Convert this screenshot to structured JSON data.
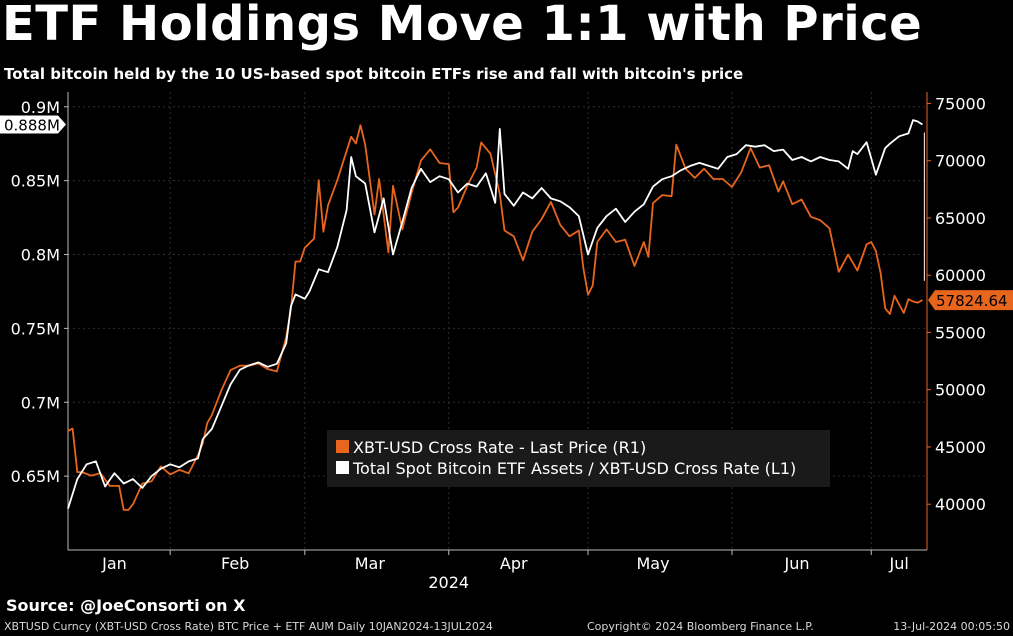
{
  "header": {
    "title": "ETF Holdings Move 1:1 with Price",
    "subtitle": "Total bitcoin held by the 10 US-based spot bitcoin ETFs rise and fall with bitcoin's price"
  },
  "footer": {
    "source": "Source: @JoeConsorti on X",
    "left_note": "XBTUSD Curncy (XBT-USD Cross Rate) BTC Price + ETF AUM  Daily 10JAN2024-13JUL2024",
    "copyright": "Copyright© 2024 Bloomberg Finance L.P.",
    "timestamp": "13-Jul-2024 00:05:50"
  },
  "colors": {
    "price_line": "#e8651d",
    "etf_line": "#ffffff",
    "grid": "#2e2e2e",
    "background": "#000000",
    "legend_bg": "#1a1a1a"
  },
  "chart_data": {
    "type": "line",
    "grid": true,
    "legend_placement": "bottom-center",
    "x_range": [
      "2024-01-10",
      "2024-07-13"
    ],
    "x_tick_labels": [
      "Jan",
      "Feb",
      "Mar",
      "Apr",
      "May",
      "Jun",
      "Jul"
    ],
    "x_year_label": "2024",
    "left_axis": {
      "ylim": [
        0.6,
        0.91
      ],
      "ticks": [
        0.65,
        0.7,
        0.75,
        0.8,
        0.85,
        0.9
      ],
      "tick_labels": [
        "0.65M",
        "0.7M",
        "0.75M",
        "0.8M",
        "0.85M",
        "0.9M"
      ],
      "last_value_label": "0.888M"
    },
    "right_axis": {
      "ylim": [
        36000,
        76000
      ],
      "ticks": [
        40000,
        45000,
        50000,
        55000,
        60000,
        65000,
        70000,
        75000
      ],
      "tick_labels": [
        "40000",
        "45000",
        "50000",
        "55000",
        "60000",
        "65000",
        "70000",
        "75000"
      ],
      "last_value_label": "57824.64"
    },
    "series": [
      {
        "name": "XBT-USD Cross Rate - Last Price (R1)",
        "axis": "right",
        "color": "#e8651d",
        "points": [
          [
            "2024-01-10",
            46400
          ],
          [
            "2024-01-11",
            46600
          ],
          [
            "2024-01-12",
            42800
          ],
          [
            "2024-01-13",
            42800
          ],
          [
            "2024-01-15",
            42500
          ],
          [
            "2024-01-17",
            42700
          ],
          [
            "2024-01-19",
            41600
          ],
          [
            "2024-01-21",
            41600
          ],
          [
            "2024-01-22",
            39500
          ],
          [
            "2024-01-23",
            39500
          ],
          [
            "2024-01-24",
            40000
          ],
          [
            "2024-01-26",
            41800
          ],
          [
            "2024-01-28",
            42000
          ],
          [
            "2024-01-30",
            43300
          ],
          [
            "2024-02-01",
            42600
          ],
          [
            "2024-02-03",
            43000
          ],
          [
            "2024-02-05",
            42700
          ],
          [
            "2024-02-07",
            44300
          ],
          [
            "2024-02-08",
            45300
          ],
          [
            "2024-02-09",
            47100
          ],
          [
            "2024-02-10",
            47800
          ],
          [
            "2024-02-12",
            49900
          ],
          [
            "2024-02-14",
            51700
          ],
          [
            "2024-02-16",
            52100
          ],
          [
            "2024-02-18",
            52100
          ],
          [
            "2024-02-20",
            52300
          ],
          [
            "2024-02-22",
            51800
          ],
          [
            "2024-02-24",
            51600
          ],
          [
            "2024-02-26",
            54600
          ],
          [
            "2024-02-27",
            57000
          ],
          [
            "2024-02-28",
            61200
          ],
          [
            "2024-02-29",
            61200
          ],
          [
            "2024-03-01",
            62400
          ],
          [
            "2024-03-03",
            63200
          ],
          [
            "2024-03-04",
            68300
          ],
          [
            "2024-03-05",
            63800
          ],
          [
            "2024-03-06",
            66100
          ],
          [
            "2024-03-08",
            68300
          ],
          [
            "2024-03-11",
            72100
          ],
          [
            "2024-03-12",
            71500
          ],
          [
            "2024-03-13",
            73100
          ],
          [
            "2024-03-14",
            71400
          ],
          [
            "2024-03-16",
            65300
          ],
          [
            "2024-03-17",
            68400
          ],
          [
            "2024-03-19",
            62000
          ],
          [
            "2024-03-20",
            67800
          ],
          [
            "2024-03-22",
            64000
          ],
          [
            "2024-03-24",
            67200
          ],
          [
            "2024-03-26",
            70000
          ],
          [
            "2024-03-28",
            71000
          ],
          [
            "2024-03-30",
            69800
          ],
          [
            "2024-04-01",
            69700
          ],
          [
            "2024-04-02",
            65500
          ],
          [
            "2024-04-03",
            65900
          ],
          [
            "2024-04-05",
            67800
          ],
          [
            "2024-04-07",
            69400
          ],
          [
            "2024-04-08",
            71600
          ],
          [
            "2024-04-10",
            70600
          ],
          [
            "2024-04-12",
            67100
          ],
          [
            "2024-04-13",
            63900
          ],
          [
            "2024-04-15",
            63400
          ],
          [
            "2024-04-17",
            61300
          ],
          [
            "2024-04-19",
            63800
          ],
          [
            "2024-04-21",
            64900
          ],
          [
            "2024-04-23",
            66400
          ],
          [
            "2024-04-25",
            64400
          ],
          [
            "2024-04-27",
            63400
          ],
          [
            "2024-04-29",
            63900
          ],
          [
            "2024-04-30",
            60600
          ],
          [
            "2024-05-01",
            58300
          ],
          [
            "2024-05-02",
            59100
          ],
          [
            "2024-05-03",
            62900
          ],
          [
            "2024-05-05",
            64000
          ],
          [
            "2024-05-07",
            62900
          ],
          [
            "2024-05-09",
            63100
          ],
          [
            "2024-05-11",
            60800
          ],
          [
            "2024-05-13",
            62900
          ],
          [
            "2024-05-14",
            61600
          ],
          [
            "2024-05-15",
            66300
          ],
          [
            "2024-05-17",
            67000
          ],
          [
            "2024-05-19",
            66900
          ],
          [
            "2024-05-20",
            71400
          ],
          [
            "2024-05-22",
            69300
          ],
          [
            "2024-05-24",
            68500
          ],
          [
            "2024-05-26",
            69300
          ],
          [
            "2024-05-28",
            68400
          ],
          [
            "2024-05-30",
            68400
          ],
          [
            "2024-06-01",
            67700
          ],
          [
            "2024-06-03",
            69000
          ],
          [
            "2024-06-05",
            71100
          ],
          [
            "2024-06-07",
            69400
          ],
          [
            "2024-06-09",
            69600
          ],
          [
            "2024-06-11",
            67300
          ],
          [
            "2024-06-12",
            68200
          ],
          [
            "2024-06-14",
            66200
          ],
          [
            "2024-06-16",
            66600
          ],
          [
            "2024-06-18",
            65100
          ],
          [
            "2024-06-20",
            64800
          ],
          [
            "2024-06-22",
            64100
          ],
          [
            "2024-06-24",
            60300
          ],
          [
            "2024-06-26",
            61800
          ],
          [
            "2024-06-28",
            60400
          ],
          [
            "2024-06-30",
            62700
          ],
          [
            "2024-07-01",
            62900
          ],
          [
            "2024-07-02",
            62100
          ],
          [
            "2024-07-03",
            60200
          ],
          [
            "2024-07-04",
            57100
          ],
          [
            "2024-07-05",
            56600
          ],
          [
            "2024-07-06",
            58200
          ],
          [
            "2024-07-08",
            56700
          ],
          [
            "2024-07-09",
            57900
          ],
          [
            "2024-07-10",
            57700
          ],
          [
            "2024-07-11",
            57600
          ],
          [
            "2024-07-12",
            57825
          ]
        ]
      },
      {
        "name": "Total Spot Bitcoin ETF Assets / XBT-USD Cross Rate (L1)",
        "axis": "left",
        "color": "#ffffff",
        "points": [
          [
            "2024-01-10",
            0.628
          ],
          [
            "2024-01-12",
            0.648
          ],
          [
            "2024-01-14",
            0.658
          ],
          [
            "2024-01-16",
            0.66
          ],
          [
            "2024-01-18",
            0.643
          ],
          [
            "2024-01-20",
            0.652
          ],
          [
            "2024-01-22",
            0.645
          ],
          [
            "2024-01-24",
            0.648
          ],
          [
            "2024-01-26",
            0.642
          ],
          [
            "2024-01-28",
            0.65
          ],
          [
            "2024-01-30",
            0.655
          ],
          [
            "2024-02-01",
            0.658
          ],
          [
            "2024-02-03",
            0.656
          ],
          [
            "2024-02-05",
            0.66
          ],
          [
            "2024-02-07",
            0.662
          ],
          [
            "2024-02-08",
            0.675
          ],
          [
            "2024-02-10",
            0.682
          ],
          [
            "2024-02-12",
            0.697
          ],
          [
            "2024-02-14",
            0.712
          ],
          [
            "2024-02-16",
            0.722
          ],
          [
            "2024-02-18",
            0.725
          ],
          [
            "2024-02-20",
            0.727
          ],
          [
            "2024-02-22",
            0.724
          ],
          [
            "2024-02-24",
            0.726
          ],
          [
            "2024-02-26",
            0.74
          ],
          [
            "2024-02-27",
            0.765
          ],
          [
            "2024-02-28",
            0.773
          ],
          [
            "2024-03-01",
            0.77
          ],
          [
            "2024-03-02",
            0.775
          ],
          [
            "2024-03-04",
            0.79
          ],
          [
            "2024-03-06",
            0.788
          ],
          [
            "2024-03-08",
            0.805
          ],
          [
            "2024-03-10",
            0.83
          ],
          [
            "2024-03-11",
            0.866
          ],
          [
            "2024-03-12",
            0.853
          ],
          [
            "2024-03-14",
            0.848
          ],
          [
            "2024-03-16",
            0.815
          ],
          [
            "2024-03-18",
            0.838
          ],
          [
            "2024-03-20",
            0.8
          ],
          [
            "2024-03-22",
            0.822
          ],
          [
            "2024-03-24",
            0.845
          ],
          [
            "2024-03-26",
            0.858
          ],
          [
            "2024-03-28",
            0.849
          ],
          [
            "2024-03-30",
            0.853
          ],
          [
            "2024-04-01",
            0.851
          ],
          [
            "2024-04-03",
            0.842
          ],
          [
            "2024-04-05",
            0.848
          ],
          [
            "2024-04-07",
            0.846
          ],
          [
            "2024-04-09",
            0.855
          ],
          [
            "2024-04-11",
            0.835
          ],
          [
            "2024-04-12",
            0.885
          ],
          [
            "2024-04-13",
            0.841
          ],
          [
            "2024-04-15",
            0.833
          ],
          [
            "2024-04-17",
            0.842
          ],
          [
            "2024-04-19",
            0.838
          ],
          [
            "2024-04-21",
            0.845
          ],
          [
            "2024-04-23",
            0.838
          ],
          [
            "2024-04-25",
            0.836
          ],
          [
            "2024-04-27",
            0.832
          ],
          [
            "2024-04-29",
            0.826
          ],
          [
            "2024-05-01",
            0.8
          ],
          [
            "2024-05-03",
            0.818
          ],
          [
            "2024-05-05",
            0.826
          ],
          [
            "2024-05-07",
            0.831
          ],
          [
            "2024-05-09",
            0.822
          ],
          [
            "2024-05-11",
            0.829
          ],
          [
            "2024-05-13",
            0.834
          ],
          [
            "2024-05-15",
            0.846
          ],
          [
            "2024-05-17",
            0.851
          ],
          [
            "2024-05-19",
            0.853
          ],
          [
            "2024-05-21",
            0.857
          ],
          [
            "2024-05-23",
            0.86
          ],
          [
            "2024-05-25",
            0.862
          ],
          [
            "2024-05-27",
            0.86
          ],
          [
            "2024-05-29",
            0.858
          ],
          [
            "2024-05-31",
            0.866
          ],
          [
            "2024-06-02",
            0.868
          ],
          [
            "2024-06-04",
            0.874
          ],
          [
            "2024-06-06",
            0.873
          ],
          [
            "2024-06-08",
            0.874
          ],
          [
            "2024-06-10",
            0.87
          ],
          [
            "2024-06-12",
            0.871
          ],
          [
            "2024-06-14",
            0.864
          ],
          [
            "2024-06-16",
            0.866
          ],
          [
            "2024-06-18",
            0.863
          ],
          [
            "2024-06-20",
            0.866
          ],
          [
            "2024-06-22",
            0.864
          ],
          [
            "2024-06-24",
            0.863
          ],
          [
            "2024-06-26",
            0.858
          ],
          [
            "2024-06-27",
            0.87
          ],
          [
            "2024-06-28",
            0.868
          ],
          [
            "2024-06-30",
            0.876
          ],
          [
            "2024-07-01",
            0.865
          ],
          [
            "2024-07-02",
            0.854
          ],
          [
            "2024-07-04",
            0.872
          ],
          [
            "2024-07-05",
            0.875
          ],
          [
            "2024-07-07",
            0.88
          ],
          [
            "2024-07-09",
            0.882
          ],
          [
            "2024-07-10",
            0.891
          ],
          [
            "2024-07-11",
            0.89
          ],
          [
            "2024-07-12",
            0.888
          ]
        ]
      }
    ]
  }
}
